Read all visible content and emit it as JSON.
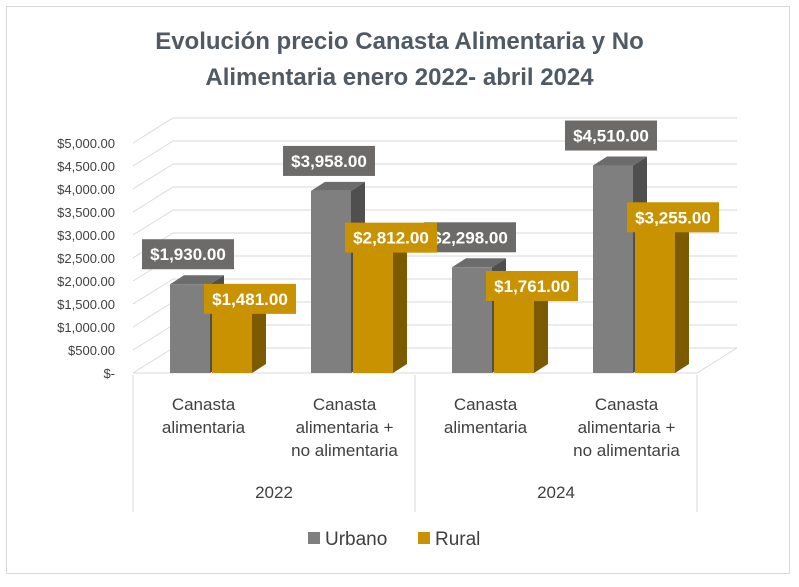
{
  "chart_data": {
    "type": "bar",
    "title_lines": [
      "Evolución precio Canasta Alimentaria y No",
      "Alimentaria enero 2022- abril 2024"
    ],
    "categories": [
      {
        "label_lines": [
          "Canasta",
          "alimentaria"
        ],
        "group": "2022"
      },
      {
        "label_lines": [
          "Canasta",
          "alimentaria +",
          "no alimentaria"
        ],
        "group": "2022"
      },
      {
        "label_lines": [
          "Canasta",
          "alimentaria"
        ],
        "group": "2024"
      },
      {
        "label_lines": [
          "Canasta",
          "alimentaria +",
          "no alimentaria"
        ],
        "group": "2024"
      }
    ],
    "groups": [
      "2022",
      "2024"
    ],
    "series": [
      {
        "name": "Urbano",
        "color": "#7f7f7f",
        "values": [
          1930,
          3958,
          2298,
          4510
        ],
        "labels": [
          "$1,930.00",
          "$3,958.00",
          "$2,298.00",
          "$4,510.00"
        ]
      },
      {
        "name": "Rural",
        "color": "#c89200",
        "values": [
          1481,
          2812,
          1761,
          3255
        ],
        "labels": [
          "$1,481.00",
          "$2,812.00",
          "$1,761.00",
          "$3,255.00"
        ]
      }
    ],
    "y_ticks": [
      0,
      500,
      1000,
      1500,
      2000,
      2500,
      3000,
      3500,
      4000,
      4500,
      5000
    ],
    "y_tick_labels": [
      "$-",
      "$500.00",
      "$1,000.00",
      "$1,500.00",
      "$2,000.00",
      "$2,500.00",
      "$3,000.00",
      "$3,500.00",
      "$4,000.00",
      "$4,500.00",
      "$5,000.00"
    ],
    "ylim": [
      0,
      5000
    ],
    "grid": true,
    "legend_position": "bottom",
    "style": "3d-clustered-column"
  }
}
